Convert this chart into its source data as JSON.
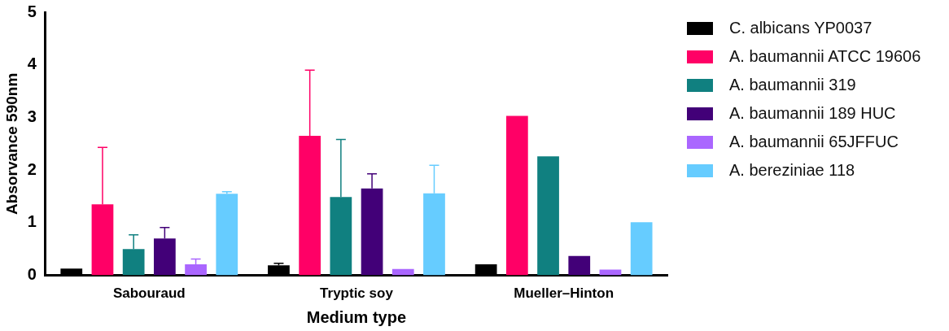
{
  "chart_data": {
    "type": "bar",
    "xlabel": "Medium type",
    "ylabel": "Absorvance 590nm",
    "categories": [
      "Sabouraud",
      "Tryptic soy",
      "Mueller–Hinton"
    ],
    "series": [
      {
        "name": "C. albicans YP0037",
        "color": "#000000",
        "values": [
          0.13,
          0.19,
          0.21
        ],
        "errors": [
          null,
          0.04,
          null
        ]
      },
      {
        "name": "A. baumannii ATCC 19606",
        "color": "#ff0066",
        "values": [
          1.35,
          2.65,
          3.03
        ],
        "errors": [
          1.08,
          1.25,
          null
        ]
      },
      {
        "name": "A. baumannii 319",
        "color": "#108080",
        "values": [
          0.5,
          1.49,
          2.26
        ],
        "errors": [
          0.27,
          1.09,
          null
        ]
      },
      {
        "name": "A. baumannii 189 HUC",
        "color": "#420078",
        "values": [
          0.7,
          1.65,
          0.37
        ],
        "errors": [
          0.21,
          0.28,
          null
        ]
      },
      {
        "name": "A. baumannii 65JFFUC",
        "color": "#aa66ff",
        "values": [
          0.21,
          0.12,
          0.11
        ],
        "errors": [
          0.1,
          null,
          null
        ]
      },
      {
        "name": "A. bereziniae 118",
        "color": "#66ccff",
        "values": [
          1.55,
          1.56,
          1.01
        ],
        "errors": [
          0.04,
          0.53,
          null
        ]
      }
    ],
    "ylim": [
      0,
      5
    ],
    "yticks": [
      0,
      1,
      2,
      3,
      4,
      5
    ],
    "grid": false,
    "legend": "right"
  }
}
